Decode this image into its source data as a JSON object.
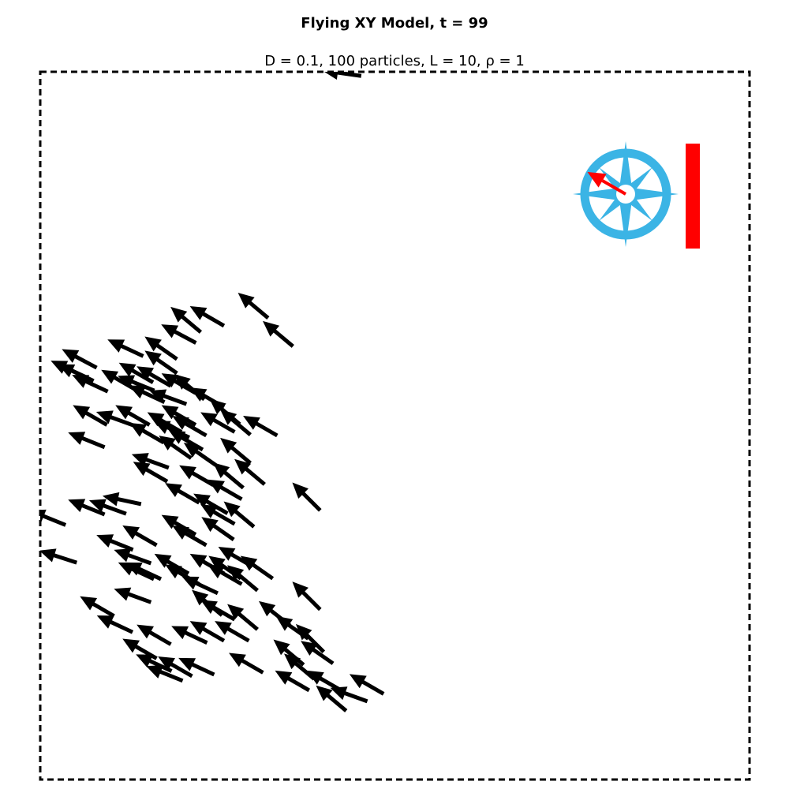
{
  "chart_data": {
    "type": "quiver",
    "title": "Flying XY Model, t =   99",
    "subtitle": "D = 0.1, 100 particles, L = 10, ρ = 1",
    "xlim": [
      0,
      10
    ],
    "ylim": [
      0,
      10
    ],
    "boundary_style": "dashed",
    "grid": false,
    "colors": {
      "arrows": "#000000",
      "compass": "#3bb4e5",
      "mean_direction": "#ff0000",
      "order_bar": "#ff0000"
    },
    "compass": {
      "mean_direction_deg": 150,
      "placement": "top-right"
    },
    "order_parameter": 0.95,
    "particles": [
      [
        4.25,
        9.98,
        172
      ],
      [
        3.0,
        6.7,
        140
      ],
      [
        2.05,
        6.5,
        140
      ],
      [
        1.95,
        6.3,
        152
      ],
      [
        3.35,
        6.3,
        140
      ],
      [
        0.55,
        5.95,
        152
      ],
      [
        1.2,
        6.1,
        155
      ],
      [
        1.7,
        6.1,
        145
      ],
      [
        0.4,
        5.8,
        155
      ],
      [
        0.5,
        5.75,
        155
      ],
      [
        0.7,
        5.6,
        155
      ],
      [
        1.1,
        5.65,
        150
      ],
      [
        1.35,
        5.6,
        158
      ],
      [
        1.5,
        5.45,
        155
      ],
      [
        1.35,
        5.75,
        150
      ],
      [
        1.6,
        5.7,
        150
      ],
      [
        1.95,
        5.6,
        150
      ],
      [
        2.1,
        5.55,
        140
      ],
      [
        1.8,
        5.4,
        160
      ],
      [
        2.35,
        5.4,
        150
      ],
      [
        2.6,
        5.2,
        140
      ],
      [
        2.75,
        5.05,
        140
      ],
      [
        3.1,
        5.0,
        150
      ],
      [
        0.7,
        5.15,
        150
      ],
      [
        1.05,
        5.1,
        160
      ],
      [
        1.3,
        5.15,
        150
      ],
      [
        1.75,
        5.05,
        150
      ],
      [
        1.95,
        5.15,
        150
      ],
      [
        2.1,
        5.0,
        150
      ],
      [
        2.5,
        5.05,
        150
      ],
      [
        0.65,
        4.8,
        158
      ],
      [
        1.5,
        4.9,
        150
      ],
      [
        1.9,
        4.7,
        145
      ],
      [
        2.25,
        4.6,
        145
      ],
      [
        2.75,
        4.65,
        140
      ],
      [
        2.95,
        4.35,
        140
      ],
      [
        1.55,
        4.5,
        160
      ],
      [
        1.55,
        4.35,
        150
      ],
      [
        2.2,
        4.3,
        150
      ],
      [
        2.65,
        4.3,
        140
      ],
      [
        2.0,
        4.05,
        150
      ],
      [
        2.6,
        4.1,
        150
      ],
      [
        3.75,
        4.0,
        135
      ],
      [
        1.15,
        3.95,
        168
      ],
      [
        0.65,
        3.85,
        158
      ],
      [
        0.95,
        3.85,
        160
      ],
      [
        0.1,
        3.7,
        158
      ],
      [
        2.4,
        3.9,
        150
      ],
      [
        2.5,
        3.75,
        150
      ],
      [
        2.8,
        3.75,
        140
      ],
      [
        1.95,
        3.6,
        150
      ],
      [
        2.1,
        3.45,
        150
      ],
      [
        1.4,
        3.45,
        150
      ],
      [
        2.5,
        3.55,
        145
      ],
      [
        0.25,
        3.15,
        162
      ],
      [
        1.3,
        3.15,
        160
      ],
      [
        1.85,
        3.05,
        150
      ],
      [
        2.35,
        3.05,
        150
      ],
      [
        2.75,
        3.15,
        150
      ],
      [
        3.05,
        3.0,
        145
      ],
      [
        1.45,
        2.95,
        155
      ],
      [
        2.0,
        2.9,
        150
      ],
      [
        2.25,
        2.75,
        155
      ],
      [
        2.6,
        2.9,
        150
      ],
      [
        2.85,
        2.85,
        140
      ],
      [
        1.35,
        2.95,
        155
      ],
      [
        1.3,
        2.6,
        160
      ],
      [
        2.35,
        2.5,
        140
      ],
      [
        2.85,
        2.3,
        140
      ],
      [
        3.3,
        2.35,
        142
      ],
      [
        3.75,
        2.6,
        135
      ],
      [
        3.55,
        2.15,
        145
      ],
      [
        0.8,
        2.45,
        150
      ],
      [
        1.05,
        2.2,
        155
      ],
      [
        1.6,
        2.05,
        150
      ],
      [
        2.1,
        2.05,
        155
      ],
      [
        2.35,
        2.1,
        150
      ],
      [
        2.7,
        2.1,
        150
      ],
      [
        2.5,
        2.4,
        150
      ],
      [
        3.8,
        2.0,
        135
      ],
      [
        1.4,
        1.85,
        150
      ],
      [
        1.75,
        1.5,
        158
      ],
      [
        3.5,
        1.8,
        140
      ],
      [
        3.9,
        1.8,
        145
      ],
      [
        2.9,
        1.65,
        150
      ],
      [
        3.65,
        1.6,
        140
      ],
      [
        4.6,
        1.35,
        150
      ],
      [
        4.0,
        1.4,
        150
      ],
      [
        4.35,
        1.2,
        160
      ],
      [
        4.1,
        1.15,
        140
      ],
      [
        3.55,
        1.4,
        150
      ],
      [
        1.6,
        1.65,
        155
      ],
      [
        1.9,
        1.6,
        150
      ],
      [
        2.2,
        1.6,
        155
      ],
      [
        1.05,
        3.35,
        158
      ],
      [
        2.05,
        4.8,
        150
      ],
      [
        1.7,
        5.9,
        145
      ],
      [
        2.35,
        6.55,
        150
      ],
      [
        1.85,
        4.95,
        155
      ],
      [
        2.6,
        3.0,
        145
      ]
    ]
  }
}
